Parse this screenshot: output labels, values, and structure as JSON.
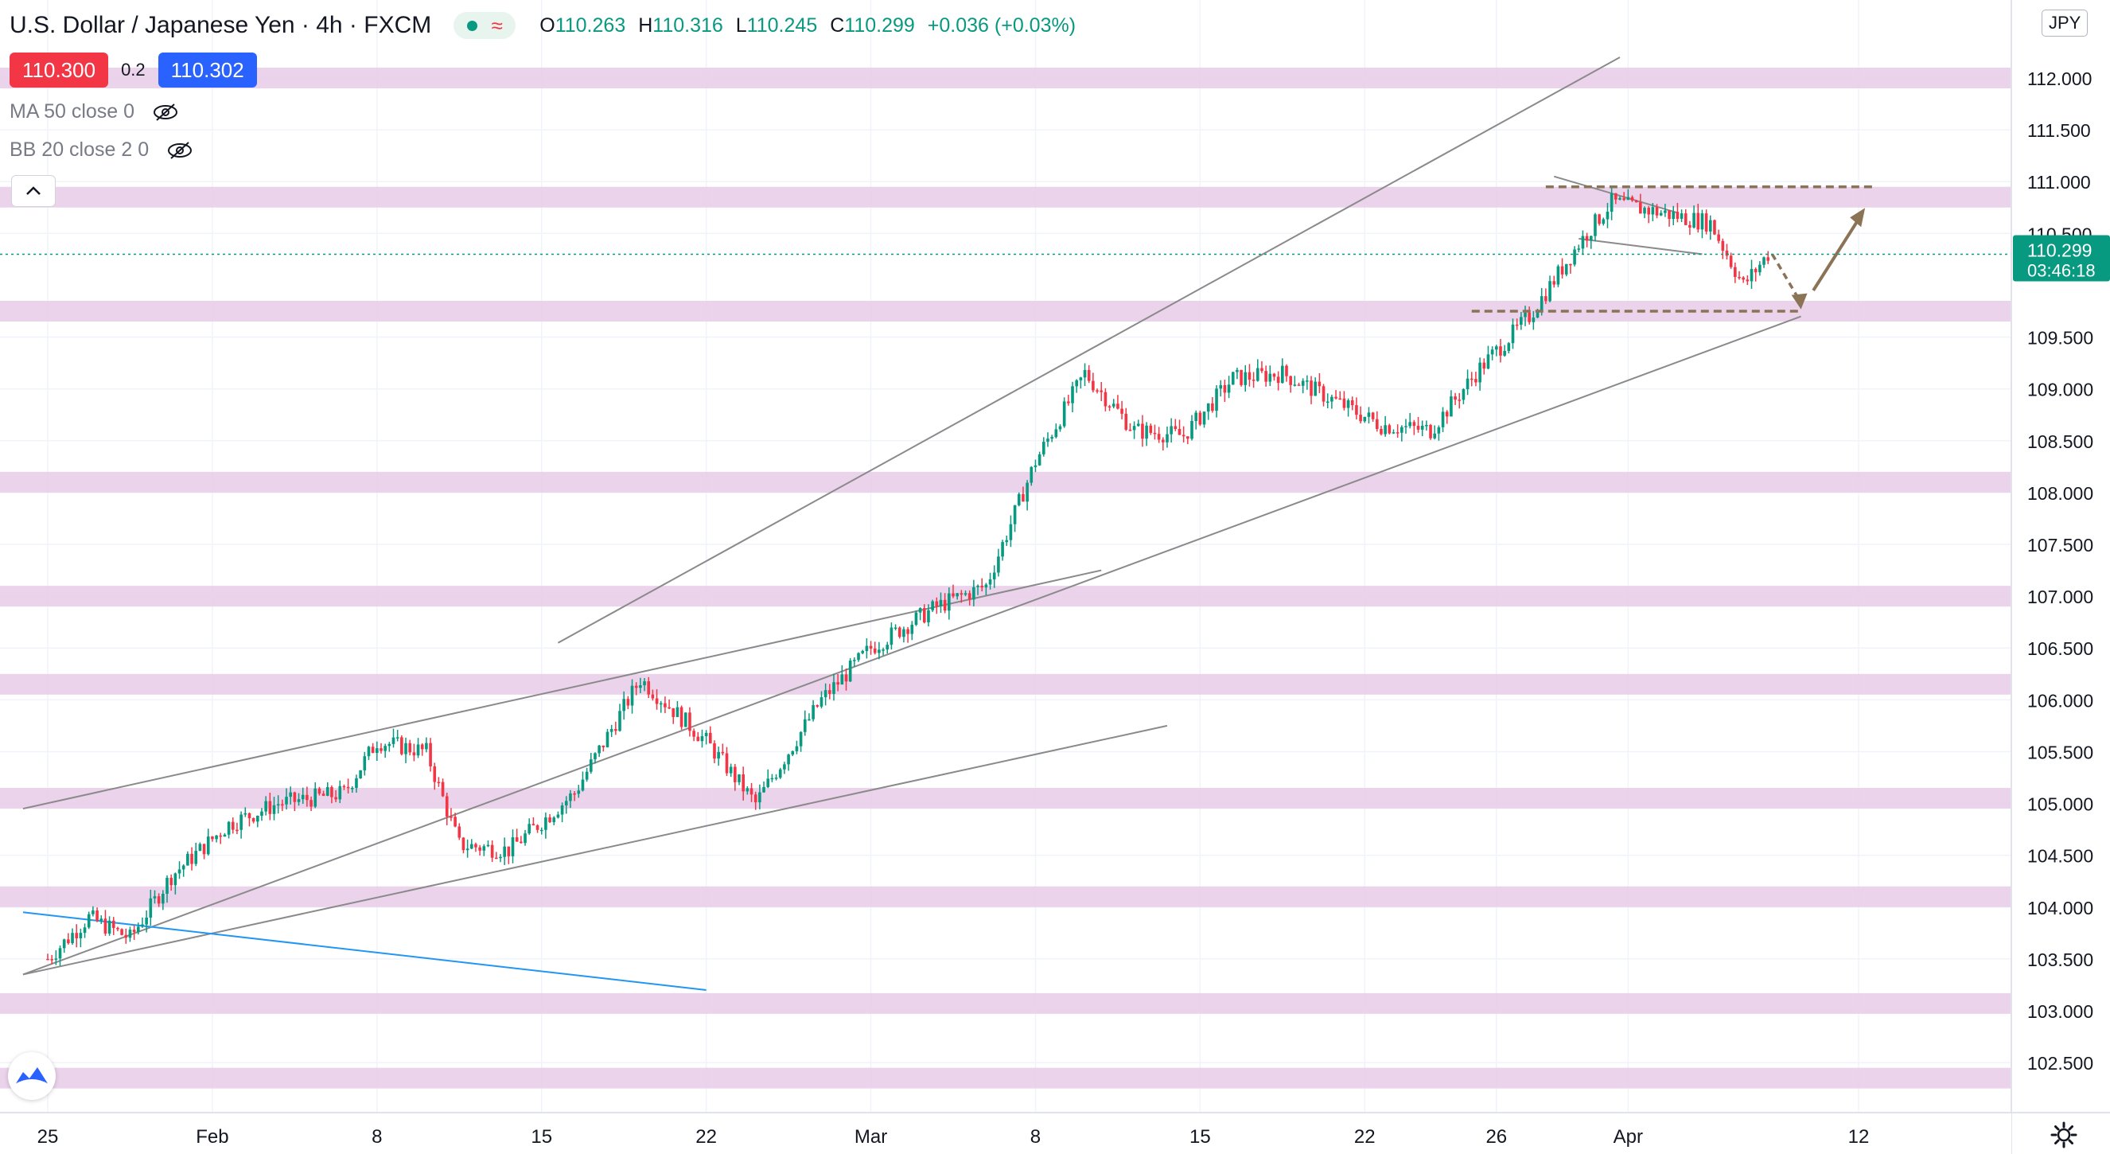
{
  "header": {
    "title": "U.S. Dollar / Japanese Yen · 4h · FXCM",
    "ohlc": [
      {
        "key": "O",
        "value": "110.263"
      },
      {
        "key": "H",
        "value": "110.316"
      },
      {
        "key": "L",
        "value": "110.245"
      },
      {
        "key": "C",
        "value": "110.299"
      },
      {
        "key": "",
        "value": "+0.036 (+0.03%)"
      }
    ]
  },
  "trade": {
    "sell_price": "110.300",
    "spread": "0.2",
    "buy_price": "110.302"
  },
  "indicators": [
    {
      "label": "MA 50 close 0"
    },
    {
      "label": "BB 20 close 2 0"
    }
  ],
  "currency": "JPY",
  "price_tag": {
    "price": "110.299",
    "countdown": "03:46:18"
  },
  "colors": {
    "up": "#089981",
    "down": "#f23645",
    "zone": "#e7cbe7",
    "trend": "#8a8a8a",
    "blue_line": "#2196f3",
    "forecast": "#8b7355"
  },
  "chart_data": {
    "type": "candlestick",
    "symbol": "USDJPY",
    "timeframe": "4h",
    "ylim": [
      102.0,
      112.4
    ],
    "y_ticks": [
      "102.500",
      "103.000",
      "103.500",
      "104.000",
      "104.500",
      "105.000",
      "105.500",
      "106.000",
      "106.500",
      "107.000",
      "107.500",
      "108.000",
      "108.500",
      "109.000",
      "109.500",
      "110.500",
      "111.000",
      "111.500",
      "112.000"
    ],
    "x_ticks": [
      "25",
      "Feb",
      "8",
      "15",
      "22",
      "Mar",
      "8",
      "15",
      "22",
      "26",
      "Apr",
      "12"
    ],
    "x_tick_index": [
      0,
      20,
      40,
      60,
      80,
      100,
      120,
      140,
      160,
      176,
      192,
      220
    ],
    "last_price": 110.299,
    "trend_guides": [
      {
        "price": 109.2,
        "index": 92
      },
      {
        "price": 110.95,
        "index": 188
      },
      {
        "price": 104.95,
        "index": 83
      }
    ],
    "support_resistance_zones": [
      112.0,
      110.85,
      109.75,
      108.1,
      107.0,
      106.15,
      105.05,
      104.1,
      103.07,
      102.35
    ],
    "forecast": {
      "target_low": 109.75,
      "target_high": 110.7
    },
    "close_path": [
      {
        "index": 0,
        "close": 103.5
      },
      {
        "index": 5,
        "close": 103.9
      },
      {
        "index": 10,
        "close": 103.7
      },
      {
        "index": 15,
        "close": 104.3
      },
      {
        "index": 22,
        "close": 104.8
      },
      {
        "index": 28,
        "close": 105.0
      },
      {
        "index": 36,
        "close": 105.1
      },
      {
        "index": 40,
        "close": 105.6
      },
      {
        "index": 46,
        "close": 105.5
      },
      {
        "index": 50,
        "close": 104.6
      },
      {
        "index": 56,
        "close": 104.55
      },
      {
        "index": 64,
        "close": 105.1
      },
      {
        "index": 72,
        "close": 106.2
      },
      {
        "index": 80,
        "close": 105.6
      },
      {
        "index": 86,
        "close": 105.0
      },
      {
        "index": 94,
        "close": 106.0
      },
      {
        "index": 100,
        "close": 106.5
      },
      {
        "index": 108,
        "close": 106.9
      },
      {
        "index": 114,
        "close": 107.1
      },
      {
        "index": 120,
        "close": 108.3
      },
      {
        "index": 126,
        "close": 109.15
      },
      {
        "index": 132,
        "close": 108.6
      },
      {
        "index": 138,
        "close": 108.55
      },
      {
        "index": 144,
        "close": 109.1
      },
      {
        "index": 150,
        "close": 109.15
      },
      {
        "index": 156,
        "close": 108.9
      },
      {
        "index": 162,
        "close": 108.65
      },
      {
        "index": 168,
        "close": 108.6
      },
      {
        "index": 174,
        "close": 109.2
      },
      {
        "index": 180,
        "close": 109.7
      },
      {
        "index": 186,
        "close": 110.4
      },
      {
        "index": 190,
        "close": 110.8
      },
      {
        "index": 196,
        "close": 110.7
      },
      {
        "index": 202,
        "close": 110.6
      },
      {
        "index": 206,
        "close": 110.0
      },
      {
        "index": 209,
        "close": 110.299
      }
    ]
  }
}
